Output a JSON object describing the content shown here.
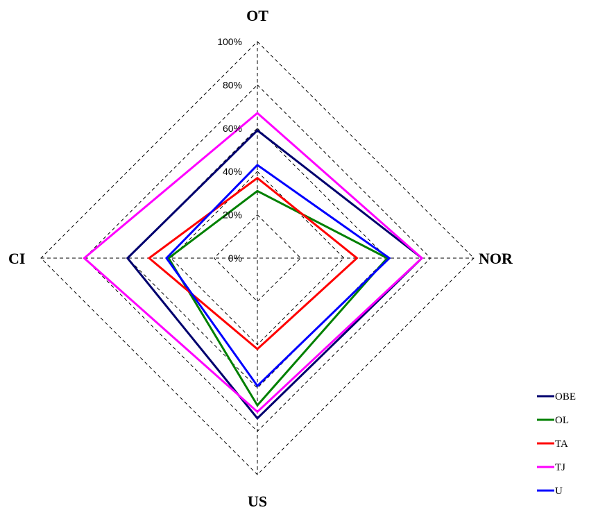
{
  "chart_data": {
    "type": "radar",
    "axes": [
      "OT",
      "NOR",
      "US",
      "CI"
    ],
    "rlim": [
      0,
      100
    ],
    "ticks": [
      "0%",
      "20%",
      "40%",
      "60%",
      "80%",
      "100%"
    ],
    "tick_values": [
      0,
      20,
      40,
      60,
      80,
      100
    ],
    "grid": true,
    "legend_position": "right",
    "series": [
      {
        "name": "OBE",
        "color": "#00006e",
        "values": [
          59,
          76,
          74,
          60
        ]
      },
      {
        "name": "OL",
        "color": "#008000",
        "values": [
          31,
          60,
          68,
          41
        ]
      },
      {
        "name": "TA",
        "color": "#ff0000",
        "values": [
          37,
          46,
          42,
          50
        ]
      },
      {
        "name": "TJ",
        "color": "#ff00ff",
        "values": [
          67,
          76,
          71,
          80
        ]
      },
      {
        "name": "U",
        "color": "#0000ff",
        "values": [
          43,
          61,
          59,
          42
        ]
      }
    ]
  }
}
